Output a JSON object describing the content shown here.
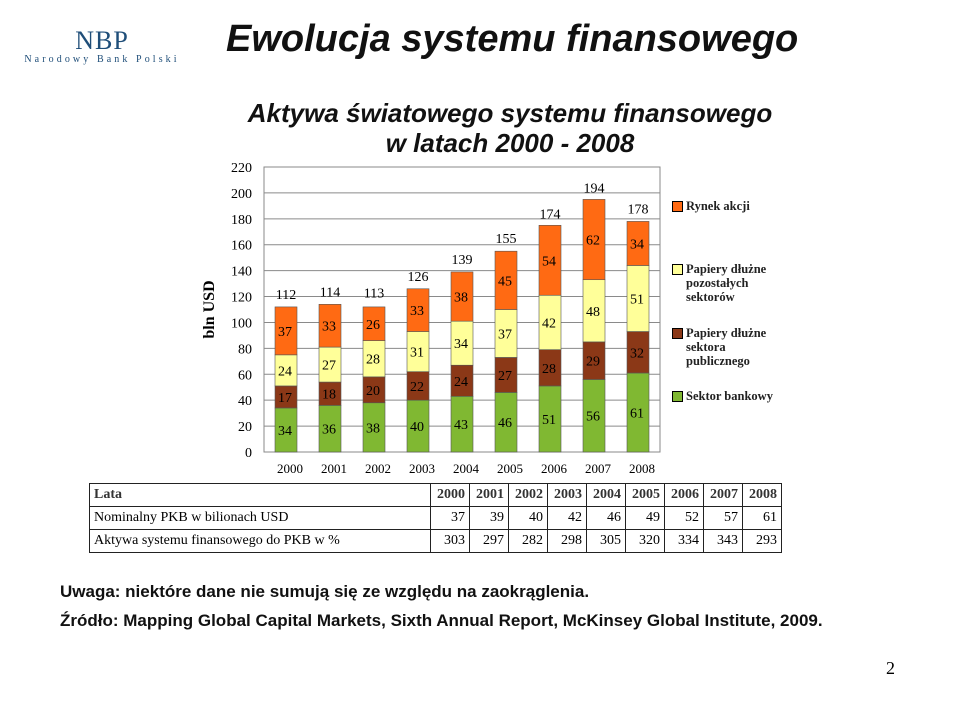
{
  "header": {
    "logo_text": "NBP",
    "logo_subtitle": "Narodowy Bank Polski",
    "title": "Ewolucja systemu finansowego"
  },
  "chart_data": {
    "type": "bar",
    "stacked": true,
    "title_line1": "Aktywa światowego systemu finansowego",
    "title_line2": "w latach 2000 - 2008",
    "ylabel": "bln USD",
    "xlabel": "",
    "ylim": [
      0,
      220
    ],
    "yticks": [
      0,
      20,
      40,
      60,
      80,
      100,
      120,
      140,
      160,
      180,
      200,
      220
    ],
    "grid": true,
    "legend_position": "right",
    "categories": [
      "2000",
      "2001",
      "2002",
      "2003",
      "2004",
      "2005",
      "2006",
      "2007",
      "2008"
    ],
    "series": [
      {
        "name": "Sektor bankowy",
        "color": "#80b832",
        "values": [
          34,
          36,
          38,
          40,
          43,
          46,
          51,
          56,
          61
        ]
      },
      {
        "name": "Papiery dłużne sektora publicznego",
        "color": "#8b3817",
        "values": [
          17,
          18,
          20,
          22,
          24,
          27,
          28,
          29,
          32
        ]
      },
      {
        "name": "Papiery dłużne pozostałych sektorów",
        "color": "#ffff99",
        "values": [
          24,
          27,
          28,
          31,
          34,
          37,
          42,
          48,
          51
        ]
      },
      {
        "name": "Rynek akcji",
        "color": "#ff6a13",
        "values": [
          37,
          33,
          26,
          33,
          38,
          45,
          54,
          62,
          34
        ]
      }
    ],
    "totals": [
      112,
      114,
      113,
      126,
      139,
      155,
      174,
      194,
      178
    ]
  },
  "table": {
    "header_label": "Lata",
    "years": [
      "2000",
      "2001",
      "2002",
      "2003",
      "2004",
      "2005",
      "2006",
      "2007",
      "2008"
    ],
    "rows": [
      {
        "label": "Nominalny PKB w bilionach USD",
        "values": [
          "37",
          "39",
          "40",
          "42",
          "46",
          "49",
          "52",
          "57",
          "61"
        ]
      },
      {
        "label": "Aktywa systemu finansowego do PKB w %",
        "values": [
          "303",
          "297",
          "282",
          "298",
          "305",
          "320",
          "334",
          "343",
          "293"
        ]
      }
    ]
  },
  "notes": {
    "note": "Uwaga: niektóre dane nie sumują się ze względu na zaokrąglenia.",
    "source": "Źródło: Mapping Global Capital Markets, Sixth Annual Report, McKinsey Global Institute, 2009."
  },
  "page_number": "2"
}
